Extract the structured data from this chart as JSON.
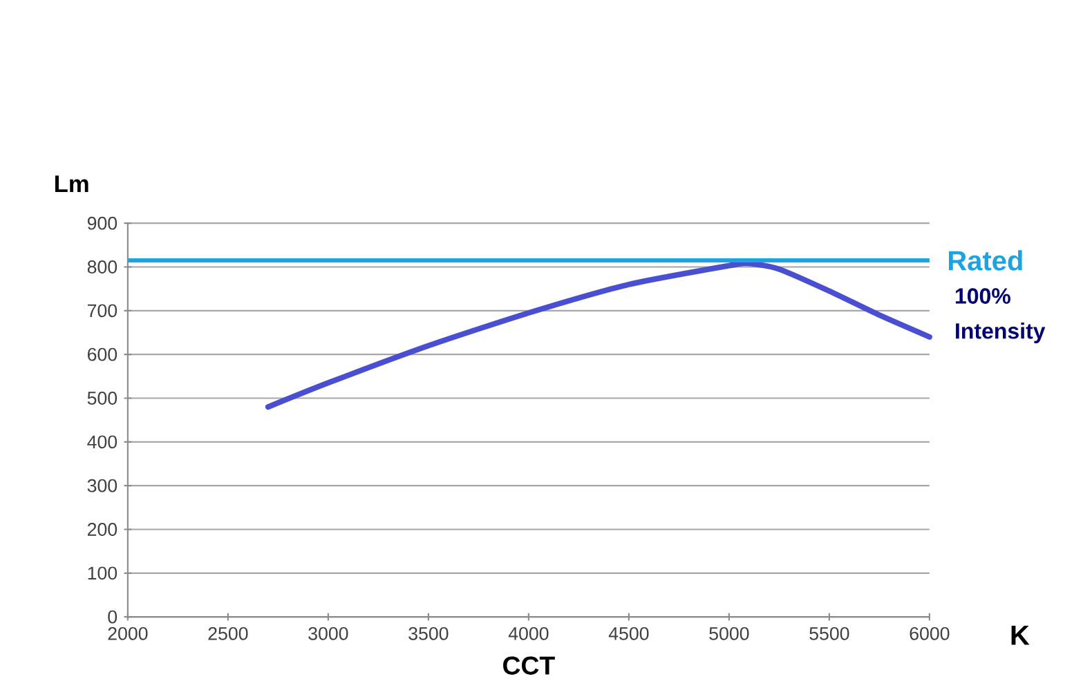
{
  "chart_data": {
    "type": "line",
    "ylabel": "Lm",
    "xlabel": "CCT",
    "annotations": [
      "K"
    ],
    "x": [
      2700,
      3000,
      3500,
      4000,
      4500,
      5000,
      5100,
      5250,
      5500,
      5750,
      6000
    ],
    "series": [
      {
        "name": "100% Intensity",
        "color": "#4a4fd2",
        "values": [
          480,
          535,
          620,
          695,
          760,
          803,
          808,
          795,
          745,
          690,
          640
        ]
      }
    ],
    "xlim": [
      2000,
      6000
    ],
    "ylim": [
      0,
      900
    ],
    "xticks": [
      2000,
      2500,
      3000,
      3500,
      4000,
      4500,
      5000,
      5500,
      6000
    ],
    "yticks": [
      0,
      100,
      200,
      300,
      400,
      500,
      600,
      700,
      800,
      900
    ],
    "ref_lines": [
      {
        "axis": "y",
        "value": 815,
        "label": "Rated",
        "color": "#1ba3e3",
        "line_style": "solid"
      }
    ],
    "grid": "y",
    "legend": false,
    "marker": "none",
    "line_style": "solid"
  }
}
